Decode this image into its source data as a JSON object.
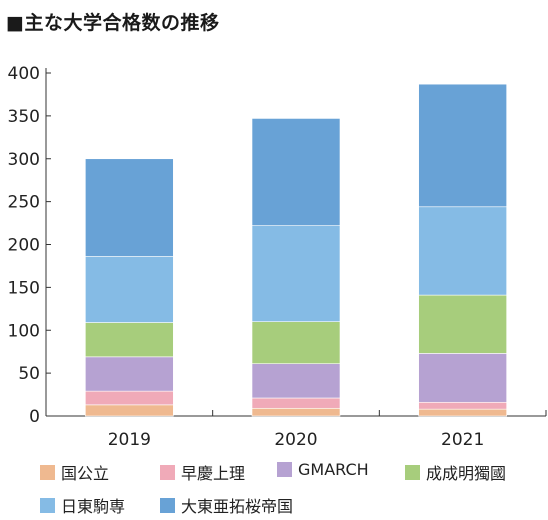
{
  "title": "■主な大学合格数の推移",
  "chart_data": {
    "type": "bar",
    "stacked": true,
    "categories": [
      "2019",
      "2020",
      "2021"
    ],
    "ylim": [
      0,
      400
    ],
    "yticks": [
      0,
      50,
      100,
      150,
      200,
      250,
      300,
      350,
      400
    ],
    "legend_position": "bottom",
    "grid": false,
    "series": [
      {
        "name": "国公立",
        "color": "#efb990",
        "values": [
          13,
          9,
          8
        ]
      },
      {
        "name": "早慶上理",
        "color": "#f0aab8",
        "values": [
          16,
          12,
          8
        ]
      },
      {
        "name": "GMARCH",
        "color": "#b6a2d2",
        "values": [
          40,
          40,
          57
        ]
      },
      {
        "name": "成成明獨國",
        "color": "#a7cd7c",
        "values": [
          40,
          49,
          68
        ]
      },
      {
        "name": "日東駒専",
        "color": "#85bbe5",
        "values": [
          77,
          112,
          103
        ]
      },
      {
        "name": "大東亜拓桜帝国",
        "color": "#68a2d6",
        "values": [
          114,
          125,
          143
        ]
      }
    ]
  }
}
